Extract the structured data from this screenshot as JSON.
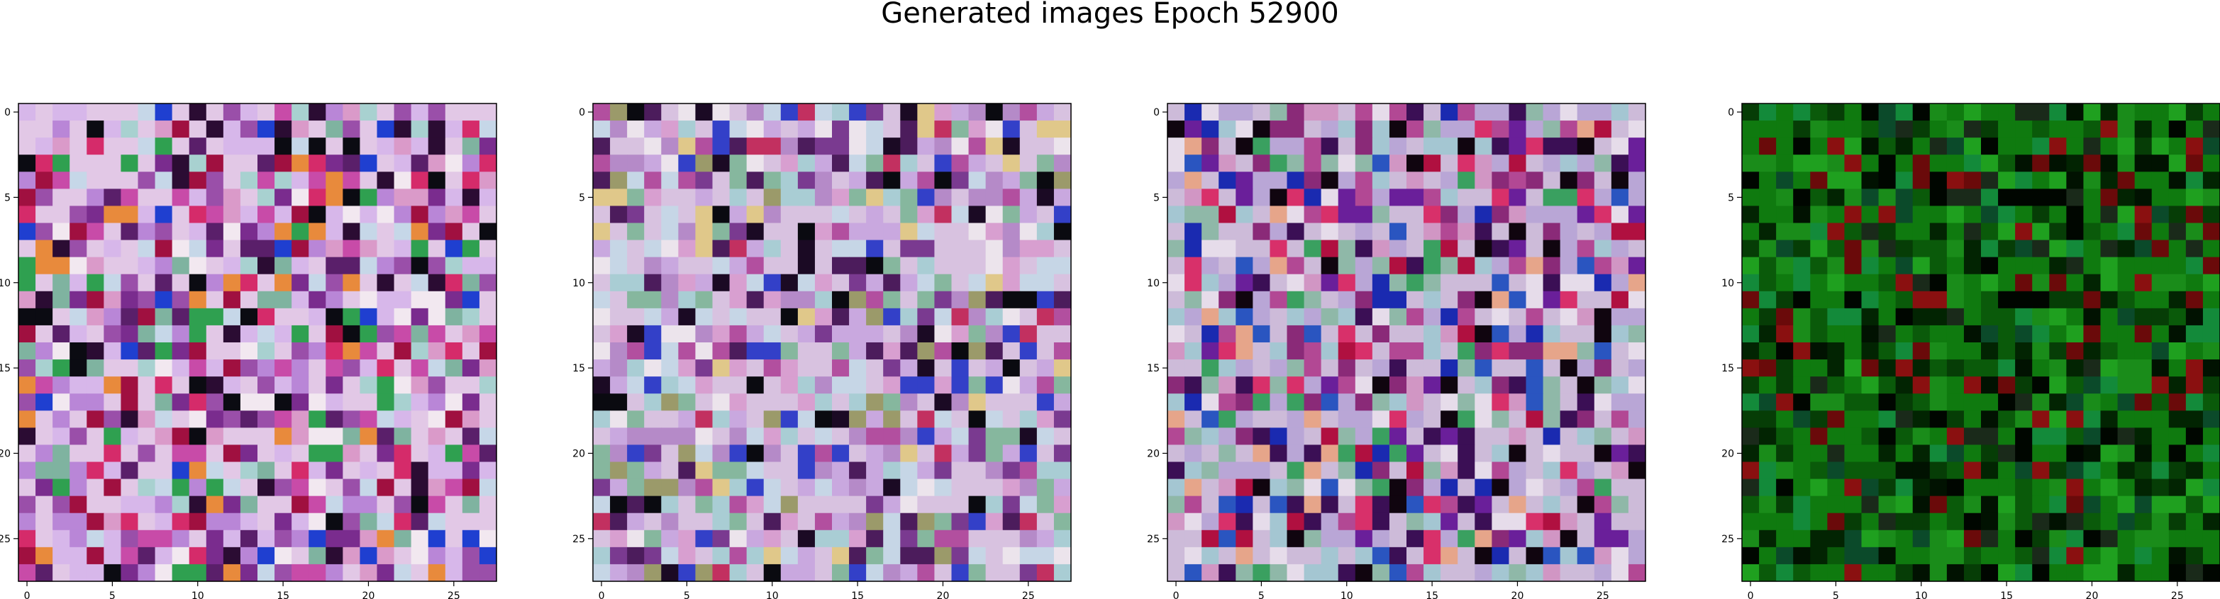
{
  "figure": {
    "title": "Generated images Epoch 52900"
  },
  "chart_data": [
    {
      "type": "heatmap",
      "panel": 1,
      "x_ticks": [
        0,
        5,
        10,
        15,
        20,
        25
      ],
      "y_ticks": [
        0,
        5,
        10,
        15,
        20,
        25
      ],
      "grid": false,
      "grid_size": 28,
      "colormap": "rgb",
      "palette": [
        "#e2c8e6",
        "#d7b7ea",
        "#b986d7",
        "#9a4fa9",
        "#7a2c8e",
        "#c6d7e8",
        "#a8d1d0",
        "#7fb3a0",
        "#f2e8f0",
        "#da9ac9",
        "#c84ba8",
        "#5a1f6a",
        "#2b0c33",
        "#0b0b12",
        "#1f3fd0",
        "#a01040",
        "#d52b6a",
        "#2fa050",
        "#e88a3c"
      ]
    },
    {
      "type": "heatmap",
      "panel": 2,
      "x_ticks": [
        0,
        5,
        10,
        15,
        20,
        25
      ],
      "y_ticks": [
        0,
        5,
        10,
        15,
        20,
        25
      ],
      "grid": false,
      "grid_size": 28,
      "colormap": "rgb",
      "palette": [
        "#d8c2e0",
        "#c9a8df",
        "#b58ac8",
        "#c6d6e6",
        "#a9cdd4",
        "#86b79e",
        "#ece4ec",
        "#d89fd0",
        "#b24f9f",
        "#7a3a90",
        "#4c1c5c",
        "#1b0a24",
        "#0a0a10",
        "#3340c8",
        "#c23060",
        "#9b9a6a",
        "#e0c88a"
      ]
    },
    {
      "type": "heatmap",
      "panel": 3,
      "x_ticks": [
        0,
        5,
        10,
        15,
        20,
        25
      ],
      "y_ticks": [
        0,
        5,
        10,
        15,
        20,
        25
      ],
      "grid": false,
      "grid_size": 28,
      "colormap": "rgb",
      "palette": [
        "#cdbbd9",
        "#b9a6d6",
        "#a4c6d2",
        "#8fb8a8",
        "#e6dcea",
        "#d196c4",
        "#b24894",
        "#8a2a78",
        "#6a1f9a",
        "#3b0f55",
        "#10050f",
        "#2a55c0",
        "#1a2ab0",
        "#b01040",
        "#d8306a",
        "#3aa060",
        "#e6a58a"
      ]
    },
    {
      "type": "heatmap",
      "panel": 4,
      "x_ticks": [
        0,
        5,
        10,
        15,
        20,
        25
      ],
      "y_ticks": [
        0,
        5,
        10,
        15,
        20,
        25
      ],
      "grid": false,
      "grid_size": 28,
      "colormap": "rgb",
      "palette": [
        "#0f7a0f",
        "#1a8c1a",
        "#0a5a0a",
        "#063d06",
        "#022402",
        "#011201",
        "#000600",
        "#138a3a",
        "#1fa01f",
        "#0b4a2a",
        "#6a0a0a",
        "#8a1010",
        "#1a2a1a"
      ]
    }
  ]
}
